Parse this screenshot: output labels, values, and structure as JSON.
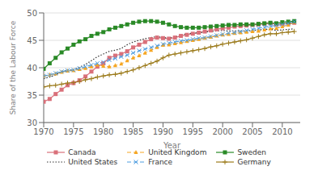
{
  "chart_data": {
    "type": "line",
    "xlabel": "Year",
    "ylabel": "Share of the Labour Force",
    "x": [
      1970,
      1971,
      1972,
      1973,
      1974,
      1975,
      1976,
      1977,
      1978,
      1979,
      1980,
      1981,
      1982,
      1983,
      1984,
      1985,
      1986,
      1987,
      1988,
      1989,
      1990,
      1991,
      1992,
      1993,
      1994,
      1995,
      1996,
      1997,
      1998,
      1999,
      2000,
      2001,
      2002,
      2003,
      2004,
      2005,
      2006,
      2007,
      2008,
      2009,
      2010,
      2011,
      2012
    ],
    "xlim": [
      1970,
      2013
    ],
    "xticks": [
      1970,
      1975,
      1980,
      1985,
      1990,
      1995,
      2000,
      2005,
      2010
    ],
    "ylim": [
      30,
      50
    ],
    "yticks": [
      30,
      35,
      40,
      45,
      50
    ],
    "grid": true,
    "legend": "bottom",
    "series": [
      {
        "name": "Canada",
        "color": "#d9707a",
        "line_style": "solid",
        "marker": "square",
        "values": [
          33.8,
          34.3,
          35.2,
          36.0,
          36.8,
          37.2,
          37.7,
          38.4,
          39.3,
          40.2,
          40.8,
          41.8,
          42.2,
          42.5,
          43.0,
          43.7,
          44.2,
          44.7,
          45.2,
          45.5,
          45.4,
          45.3,
          45.5,
          45.8,
          46.0,
          46.2,
          46.4,
          46.6,
          46.8,
          47.0,
          47.2,
          47.3,
          47.5,
          47.6,
          47.7,
          47.8,
          47.9,
          48.0,
          48.1,
          47.9,
          48.0,
          48.1,
          48.2
        ]
      },
      {
        "name": "United Kingdom",
        "color": "#f5a623",
        "line_style": "dashed",
        "marker": "triangle",
        "values": [
          38.5,
          38.7,
          38.9,
          39.2,
          39.4,
          39.5,
          39.7,
          39.9,
          40.2,
          40.5,
          40.3,
          40.2,
          40.4,
          40.7,
          41.3,
          41.8,
          42.2,
          42.7,
          43.2,
          43.7,
          44.1,
          44.2,
          44.4,
          44.6,
          44.8,
          45.0,
          45.2,
          45.4,
          45.6,
          45.8,
          46.0,
          46.1,
          46.3,
          46.4,
          46.5,
          46.6,
          46.7,
          46.9,
          47.1,
          47.2,
          47.5,
          47.8,
          48.3
        ]
      },
      {
        "name": "Sweden",
        "color": "#2a8a27",
        "line_style": "solid",
        "marker": "square",
        "values": [
          39.8,
          40.8,
          41.8,
          42.8,
          43.5,
          44.2,
          44.8,
          45.2,
          45.8,
          46.2,
          46.5,
          47.0,
          47.3,
          47.6,
          47.9,
          48.2,
          48.4,
          48.5,
          48.5,
          48.4,
          48.2,
          47.9,
          47.6,
          47.4,
          47.3,
          47.3,
          47.3,
          47.4,
          47.5,
          47.6,
          47.7,
          47.8,
          47.8,
          47.9,
          47.9,
          47.9,
          48.0,
          48.1,
          48.2,
          48.1,
          48.3,
          48.4,
          48.5
        ]
      },
      {
        "name": "United States",
        "color": "#333333",
        "line_style": "dotted",
        "values": [
          38.0,
          38.3,
          38.7,
          39.2,
          39.6,
          39.6,
          40.1,
          40.6,
          41.3,
          42.0,
          42.5,
          43.0,
          43.2,
          43.5,
          44.2,
          44.7,
          45.0,
          45.3,
          45.5,
          45.7,
          45.5,
          45.4,
          45.6,
          45.9,
          46.2,
          46.3,
          46.4,
          46.5,
          46.6,
          46.7,
          46.8,
          46.7,
          46.7,
          46.7,
          46.7,
          46.8,
          46.9,
          47.0,
          47.0,
          46.8,
          46.9,
          47.0,
          47.1
        ]
      },
      {
        "name": "France",
        "color": "#4f9de0",
        "line_style": "dashed",
        "marker": "x",
        "values": [
          38.5,
          38.7,
          39.0,
          39.3,
          39.5,
          39.6,
          39.9,
          40.2,
          40.5,
          40.8,
          41.0,
          41.4,
          41.7,
          42.0,
          42.3,
          42.7,
          43.1,
          43.4,
          43.7,
          44.0,
          44.3,
          44.5,
          44.7,
          44.9,
          45.0,
          45.2,
          45.4,
          45.5,
          45.7,
          45.9,
          46.1,
          46.3,
          46.4,
          46.6,
          46.8,
          47.0,
          47.2,
          47.4,
          47.6,
          47.7,
          47.9,
          48.1,
          48.4
        ]
      },
      {
        "name": "Germany",
        "color": "#9b7a1a",
        "line_style": "solid",
        "marker": "plus",
        "values": [
          36.5,
          36.7,
          36.8,
          37.0,
          37.2,
          37.3,
          37.5,
          37.8,
          38.0,
          38.3,
          38.5,
          38.7,
          38.8,
          39.0,
          39.3,
          39.6,
          40.0,
          40.4,
          40.8,
          41.2,
          41.8,
          42.3,
          42.5,
          42.7,
          42.9,
          43.1,
          43.3,
          43.5,
          43.8,
          44.0,
          44.3,
          44.5,
          44.7,
          44.9,
          45.1,
          45.4,
          45.7,
          46.0,
          46.2,
          46.2,
          46.4,
          46.5,
          46.6
        ]
      }
    ]
  }
}
